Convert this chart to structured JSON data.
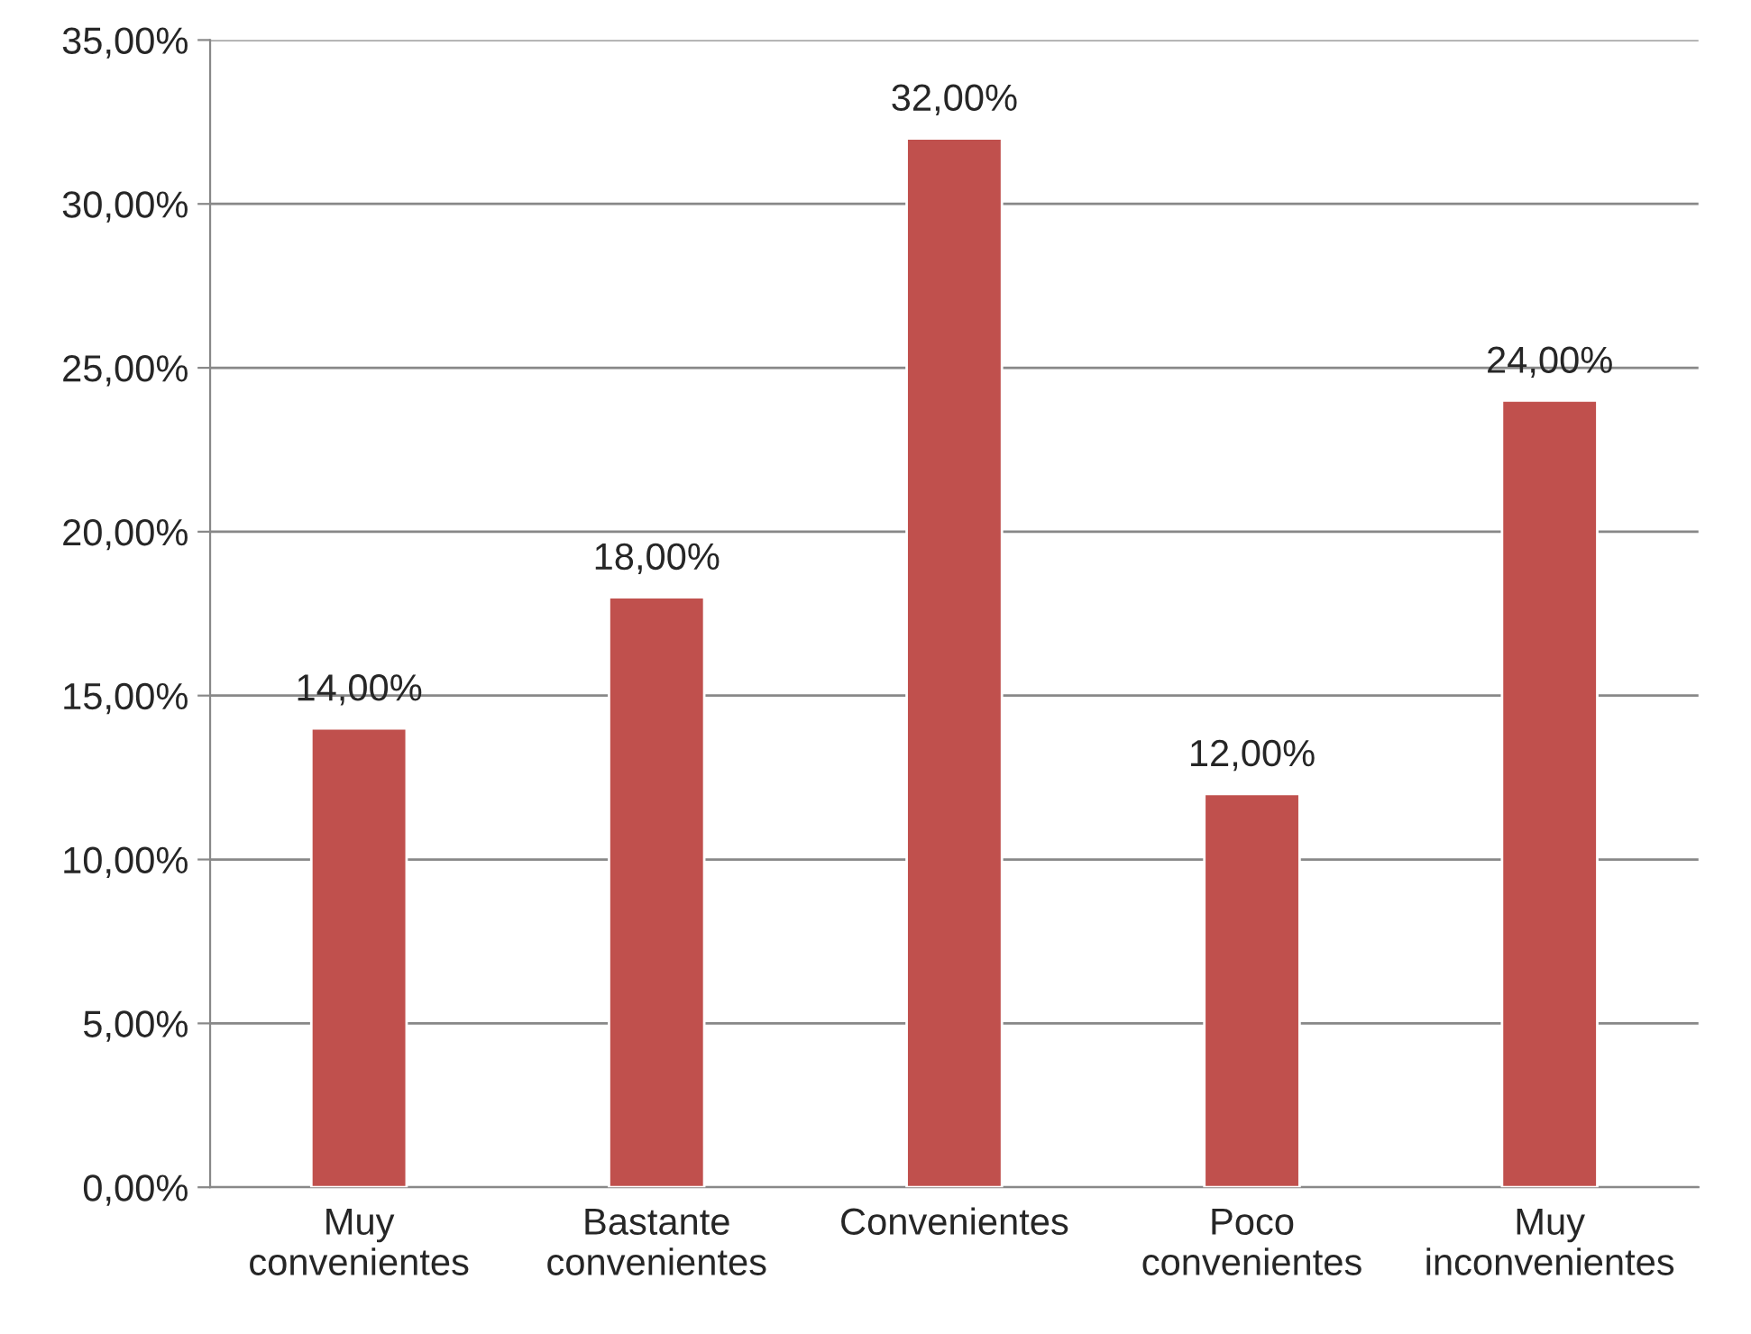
{
  "chart_data": {
    "type": "bar",
    "categories": [
      "Muy\nconvenientes",
      "Bastante\nconvenientes",
      "Convenientes",
      "Poco\nconvenientes",
      "Muy\ninconvenientes"
    ],
    "values": [
      14,
      18,
      32,
      12,
      24
    ],
    "value_labels": [
      "14,00%",
      "18,00%",
      "32,00%",
      "12,00%",
      "24,00%"
    ],
    "color": "#c0504d",
    "ylim": [
      0,
      35
    ],
    "yticks": [
      {
        "value": 0,
        "label": "0,00%"
      },
      {
        "value": 5,
        "label": "5,00%"
      },
      {
        "value": 10,
        "label": "10,00%"
      },
      {
        "value": 15,
        "label": "15,00%"
      },
      {
        "value": 20,
        "label": "20,00%"
      },
      {
        "value": 25,
        "label": "25,00%"
      },
      {
        "value": 30,
        "label": "30,00%"
      },
      {
        "value": 35,
        "label": "35,00%"
      }
    ],
    "grid": "y",
    "legend": false
  }
}
